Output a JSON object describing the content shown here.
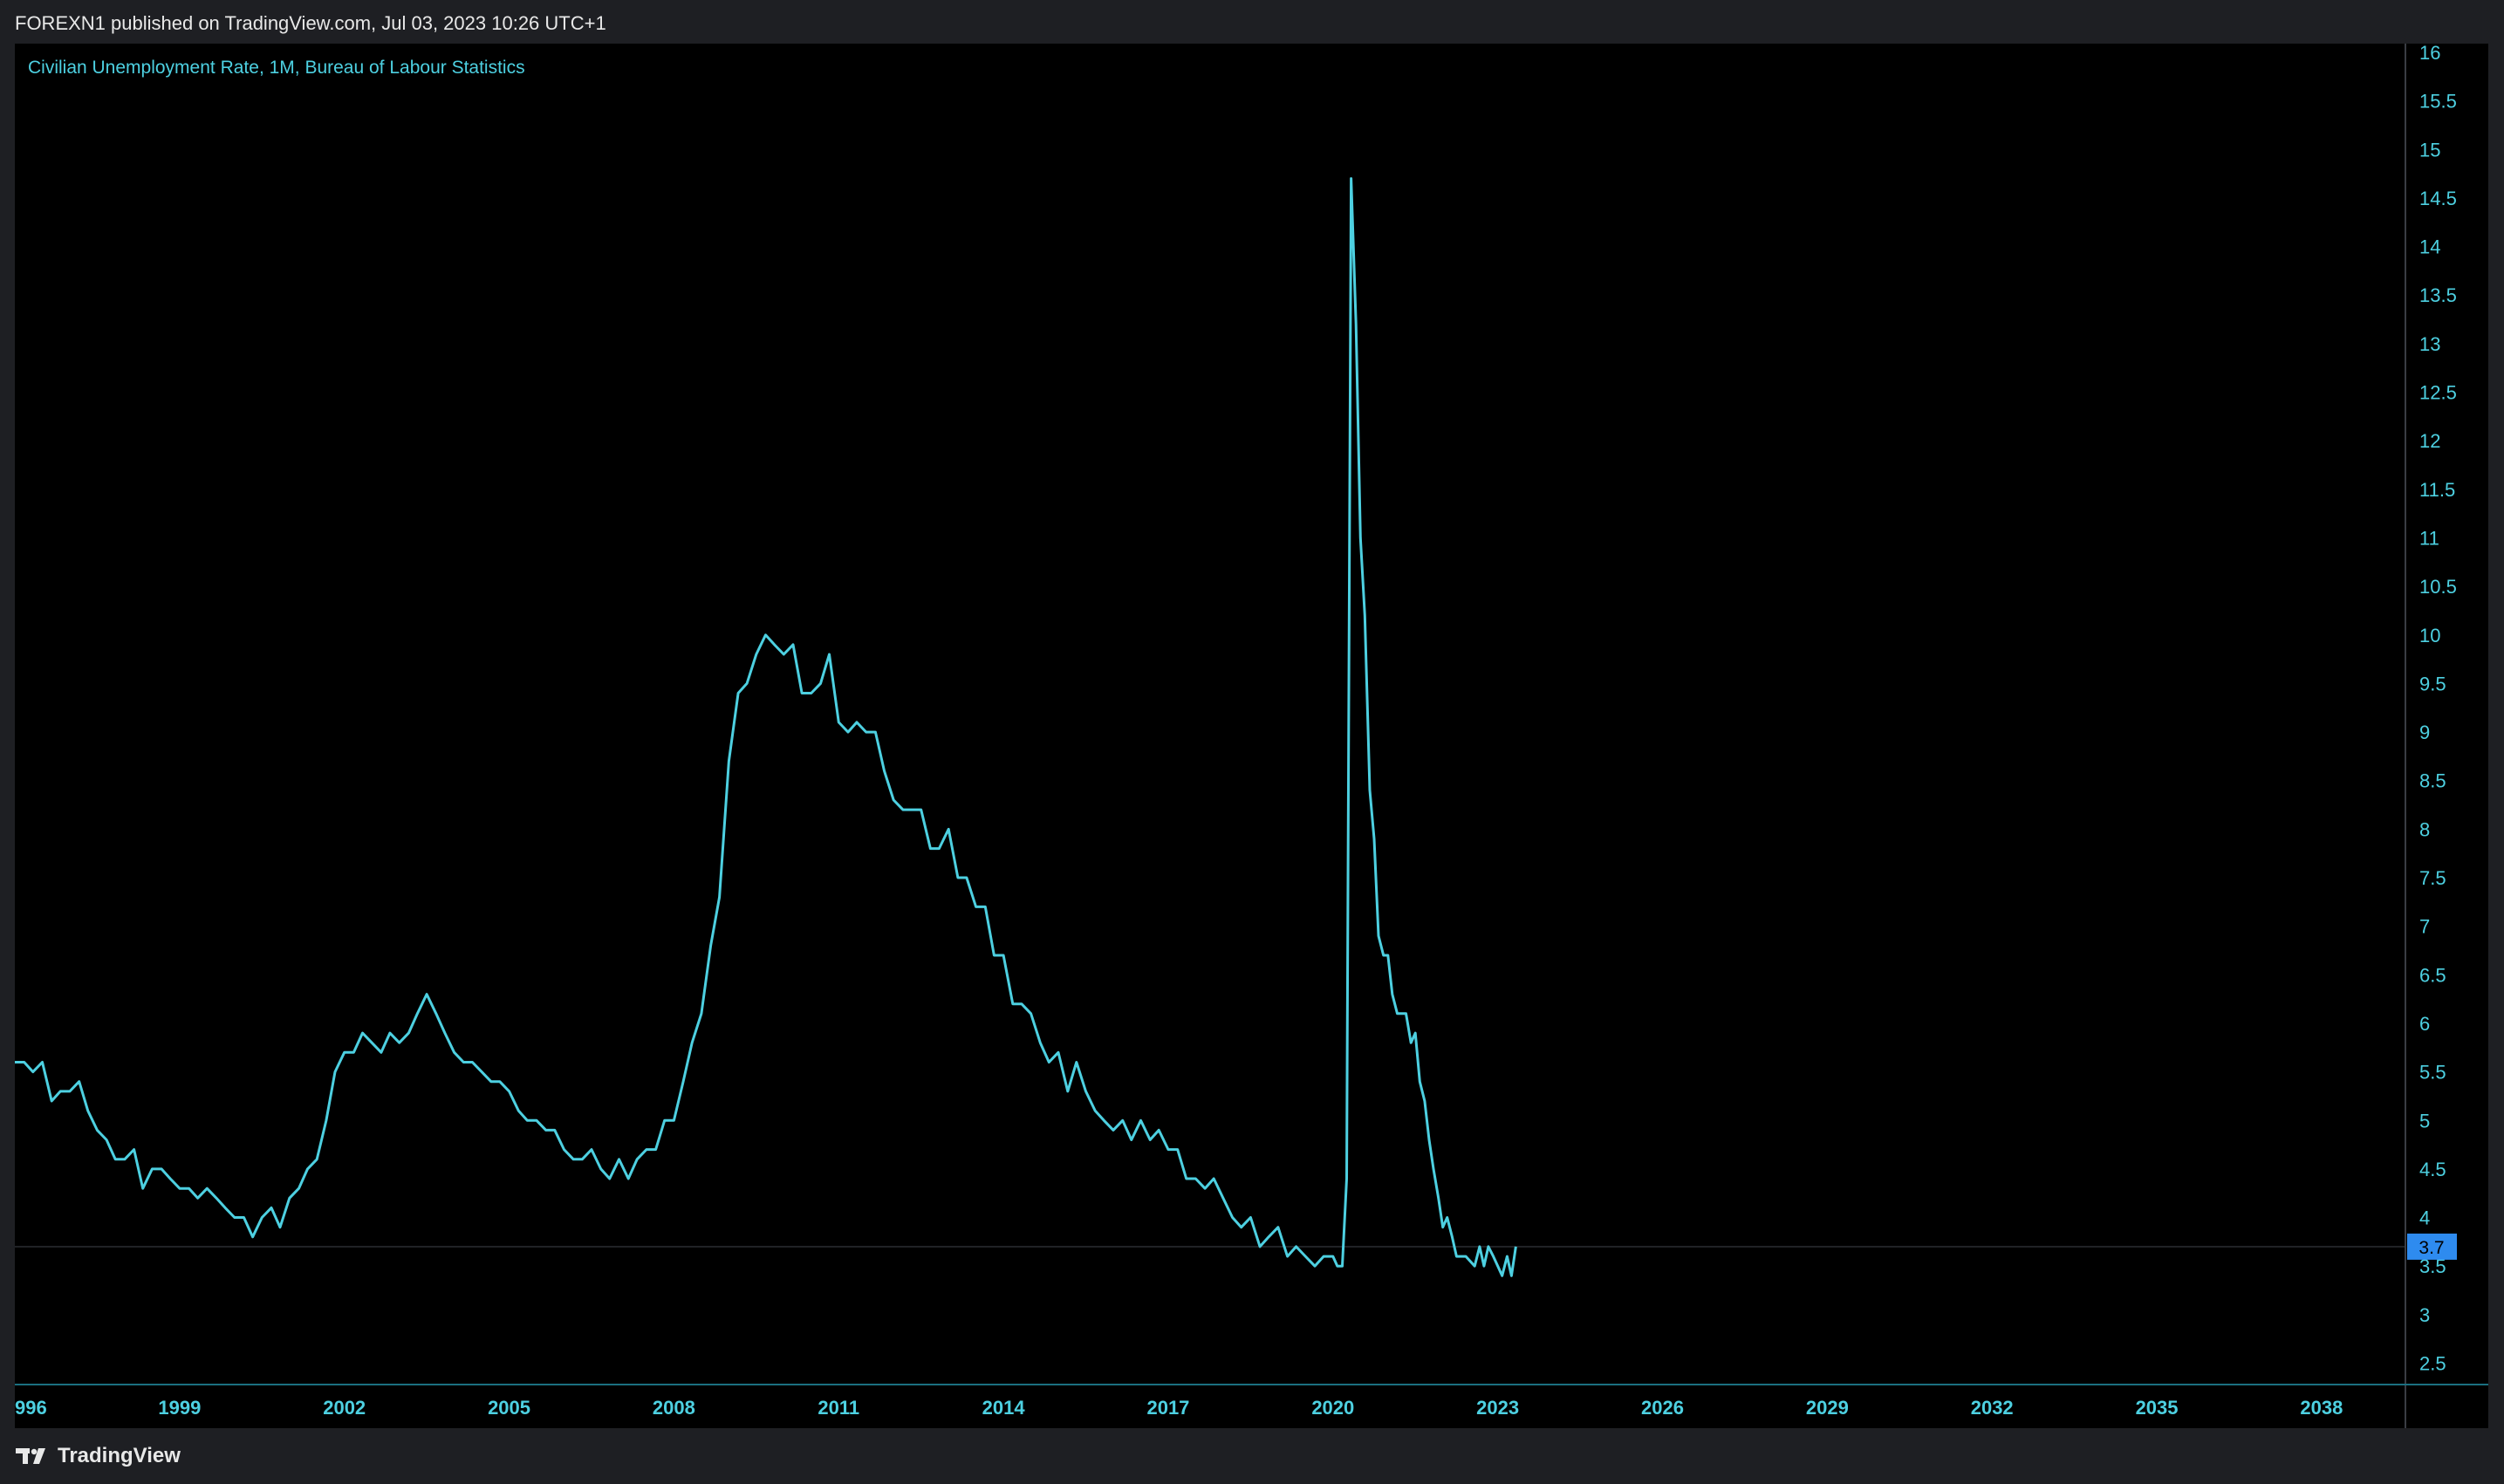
{
  "header": {
    "publish_line": "FOREXN1 published on TradingView.com, Jul 03, 2023 10:26 UTC+1"
  },
  "footer": {
    "logo_text": "TradingView",
    "logo_icon": "tradingview-logo-icon"
  },
  "colors": {
    "line": "#4dd0e1",
    "axis_text": "#4dd0e1",
    "background": "#000000",
    "badge_bg": "#2e8bef",
    "badge_text": "#000000"
  },
  "chart_data": {
    "type": "line",
    "title": "Civilian Unemployment Rate, 1M, Bureau of Labour Statistics",
    "xlabel": "",
    "ylabel": "",
    "x_range": [
      1996.0,
      2040.0
    ],
    "ylim": [
      2.05,
      16.1
    ],
    "grid": false,
    "x_ticks": [
      "996",
      "1999",
      "2002",
      "2005",
      "2008",
      "2011",
      "2014",
      "2017",
      "2020",
      "2023",
      "2026",
      "2029",
      "2032",
      "2035",
      "2038"
    ],
    "y_ticks": [
      "2.5",
      "3",
      "3.5",
      "4",
      "4.5",
      "5",
      "5.5",
      "6",
      "6.5",
      "7",
      "7.5",
      "8",
      "8.5",
      "9",
      "9.5",
      "10",
      "10.5",
      "11",
      "11.5",
      "12",
      "12.5",
      "13",
      "13.5",
      "14",
      "14.5",
      "15",
      "15.5",
      "16"
    ],
    "last_value": "3.7",
    "series": [
      {
        "points": [
          [
            1996.0,
            5.6
          ],
          [
            1996.17,
            5.6
          ],
          [
            1996.33,
            5.5
          ],
          [
            1996.5,
            5.6
          ],
          [
            1996.67,
            5.2
          ],
          [
            1996.83,
            5.3
          ],
          [
            1997.0,
            5.3
          ],
          [
            1997.17,
            5.4
          ],
          [
            1997.33,
            5.1
          ],
          [
            1997.5,
            4.9
          ],
          [
            1997.67,
            4.8
          ],
          [
            1997.83,
            4.6
          ],
          [
            1998.0,
            4.6
          ],
          [
            1998.17,
            4.7
          ],
          [
            1998.33,
            4.3
          ],
          [
            1998.5,
            4.5
          ],
          [
            1998.67,
            4.5
          ],
          [
            1998.83,
            4.4
          ],
          [
            1999.0,
            4.3
          ],
          [
            1999.17,
            4.3
          ],
          [
            1999.33,
            4.2
          ],
          [
            1999.5,
            4.3
          ],
          [
            1999.67,
            4.2
          ],
          [
            1999.83,
            4.1
          ],
          [
            2000.0,
            4.0
          ],
          [
            2000.17,
            4.0
          ],
          [
            2000.33,
            3.8
          ],
          [
            2000.5,
            4.0
          ],
          [
            2000.67,
            4.1
          ],
          [
            2000.83,
            3.9
          ],
          [
            2001.0,
            4.2
          ],
          [
            2001.17,
            4.3
          ],
          [
            2001.33,
            4.5
          ],
          [
            2001.5,
            4.6
          ],
          [
            2001.67,
            5.0
          ],
          [
            2001.83,
            5.5
          ],
          [
            2002.0,
            5.7
          ],
          [
            2002.17,
            5.7
          ],
          [
            2002.33,
            5.9
          ],
          [
            2002.5,
            5.8
          ],
          [
            2002.67,
            5.7
          ],
          [
            2002.83,
            5.9
          ],
          [
            2003.0,
            5.8
          ],
          [
            2003.17,
            5.9
          ],
          [
            2003.33,
            6.1
          ],
          [
            2003.5,
            6.3
          ],
          [
            2003.67,
            6.1
          ],
          [
            2003.83,
            5.9
          ],
          [
            2004.0,
            5.7
          ],
          [
            2004.17,
            5.6
          ],
          [
            2004.33,
            5.6
          ],
          [
            2004.5,
            5.5
          ],
          [
            2004.67,
            5.4
          ],
          [
            2004.83,
            5.4
          ],
          [
            2005.0,
            5.3
          ],
          [
            2005.17,
            5.1
          ],
          [
            2005.33,
            5.0
          ],
          [
            2005.5,
            5.0
          ],
          [
            2005.67,
            4.9
          ],
          [
            2005.83,
            4.9
          ],
          [
            2006.0,
            4.7
          ],
          [
            2006.17,
            4.6
          ],
          [
            2006.33,
            4.6
          ],
          [
            2006.5,
            4.7
          ],
          [
            2006.67,
            4.5
          ],
          [
            2006.83,
            4.4
          ],
          [
            2007.0,
            4.6
          ],
          [
            2007.17,
            4.4
          ],
          [
            2007.33,
            4.6
          ],
          [
            2007.5,
            4.7
          ],
          [
            2007.67,
            4.7
          ],
          [
            2007.83,
            5.0
          ],
          [
            2008.0,
            5.0
          ],
          [
            2008.17,
            5.4
          ],
          [
            2008.33,
            5.8
          ],
          [
            2008.5,
            6.1
          ],
          [
            2008.67,
            6.8
          ],
          [
            2008.83,
            7.3
          ],
          [
            2009.0,
            8.7
          ],
          [
            2009.17,
            9.4
          ],
          [
            2009.33,
            9.5
          ],
          [
            2009.5,
            9.8
          ],
          [
            2009.67,
            10.0
          ],
          [
            2009.83,
            9.9
          ],
          [
            2010.0,
            9.8
          ],
          [
            2010.17,
            9.9
          ],
          [
            2010.33,
            9.4
          ],
          [
            2010.5,
            9.4
          ],
          [
            2010.67,
            9.5
          ],
          [
            2010.83,
            9.8
          ],
          [
            2011.0,
            9.1
          ],
          [
            2011.17,
            9.0
          ],
          [
            2011.33,
            9.1
          ],
          [
            2011.5,
            9.0
          ],
          [
            2011.67,
            9.0
          ],
          [
            2011.83,
            8.6
          ],
          [
            2012.0,
            8.3
          ],
          [
            2012.17,
            8.2
          ],
          [
            2012.33,
            8.2
          ],
          [
            2012.5,
            8.2
          ],
          [
            2012.67,
            7.8
          ],
          [
            2012.83,
            7.8
          ],
          [
            2013.0,
            8.0
          ],
          [
            2013.17,
            7.5
          ],
          [
            2013.33,
            7.5
          ],
          [
            2013.5,
            7.2
          ],
          [
            2013.67,
            7.2
          ],
          [
            2013.83,
            6.7
          ],
          [
            2014.0,
            6.7
          ],
          [
            2014.17,
            6.2
          ],
          [
            2014.33,
            6.2
          ],
          [
            2014.5,
            6.1
          ],
          [
            2014.67,
            5.8
          ],
          [
            2014.83,
            5.6
          ],
          [
            2015.0,
            5.7
          ],
          [
            2015.17,
            5.3
          ],
          [
            2015.33,
            5.6
          ],
          [
            2015.5,
            5.3
          ],
          [
            2015.67,
            5.1
          ],
          [
            2015.83,
            5.0
          ],
          [
            2016.0,
            4.9
          ],
          [
            2016.17,
            5.0
          ],
          [
            2016.33,
            4.8
          ],
          [
            2016.5,
            5.0
          ],
          [
            2016.67,
            4.8
          ],
          [
            2016.83,
            4.9
          ],
          [
            2017.0,
            4.7
          ],
          [
            2017.17,
            4.7
          ],
          [
            2017.33,
            4.4
          ],
          [
            2017.5,
            4.4
          ],
          [
            2017.67,
            4.3
          ],
          [
            2017.83,
            4.4
          ],
          [
            2018.0,
            4.2
          ],
          [
            2018.17,
            4.0
          ],
          [
            2018.33,
            3.9
          ],
          [
            2018.5,
            4.0
          ],
          [
            2018.67,
            3.7
          ],
          [
            2018.83,
            3.8
          ],
          [
            2019.0,
            3.9
          ],
          [
            2019.17,
            3.6
          ],
          [
            2019.33,
            3.7
          ],
          [
            2019.5,
            3.6
          ],
          [
            2019.67,
            3.5
          ],
          [
            2019.83,
            3.6
          ],
          [
            2020.0,
            3.6
          ],
          [
            2020.08,
            3.5
          ],
          [
            2020.17,
            3.5
          ],
          [
            2020.25,
            4.4
          ],
          [
            2020.33,
            14.7
          ],
          [
            2020.42,
            13.2
          ],
          [
            2020.5,
            11.0
          ],
          [
            2020.58,
            10.2
          ],
          [
            2020.67,
            8.4
          ],
          [
            2020.75,
            7.9
          ],
          [
            2020.83,
            6.9
          ],
          [
            2020.92,
            6.7
          ],
          [
            2021.0,
            6.7
          ],
          [
            2021.08,
            6.3
          ],
          [
            2021.17,
            6.1
          ],
          [
            2021.33,
            6.1
          ],
          [
            2021.42,
            5.8
          ],
          [
            2021.5,
            5.9
          ],
          [
            2021.58,
            5.4
          ],
          [
            2021.67,
            5.2
          ],
          [
            2021.75,
            4.8
          ],
          [
            2021.83,
            4.5
          ],
          [
            2021.92,
            4.2
          ],
          [
            2022.0,
            3.9
          ],
          [
            2022.08,
            4.0
          ],
          [
            2022.17,
            3.8
          ],
          [
            2022.25,
            3.6
          ],
          [
            2022.42,
            3.6
          ],
          [
            2022.58,
            3.5
          ],
          [
            2022.67,
            3.7
          ],
          [
            2022.75,
            3.5
          ],
          [
            2022.83,
            3.7
          ],
          [
            2022.92,
            3.6
          ],
          [
            2023.0,
            3.5
          ],
          [
            2023.08,
            3.4
          ],
          [
            2023.17,
            3.6
          ],
          [
            2023.25,
            3.4
          ],
          [
            2023.33,
            3.7
          ]
        ]
      }
    ]
  }
}
